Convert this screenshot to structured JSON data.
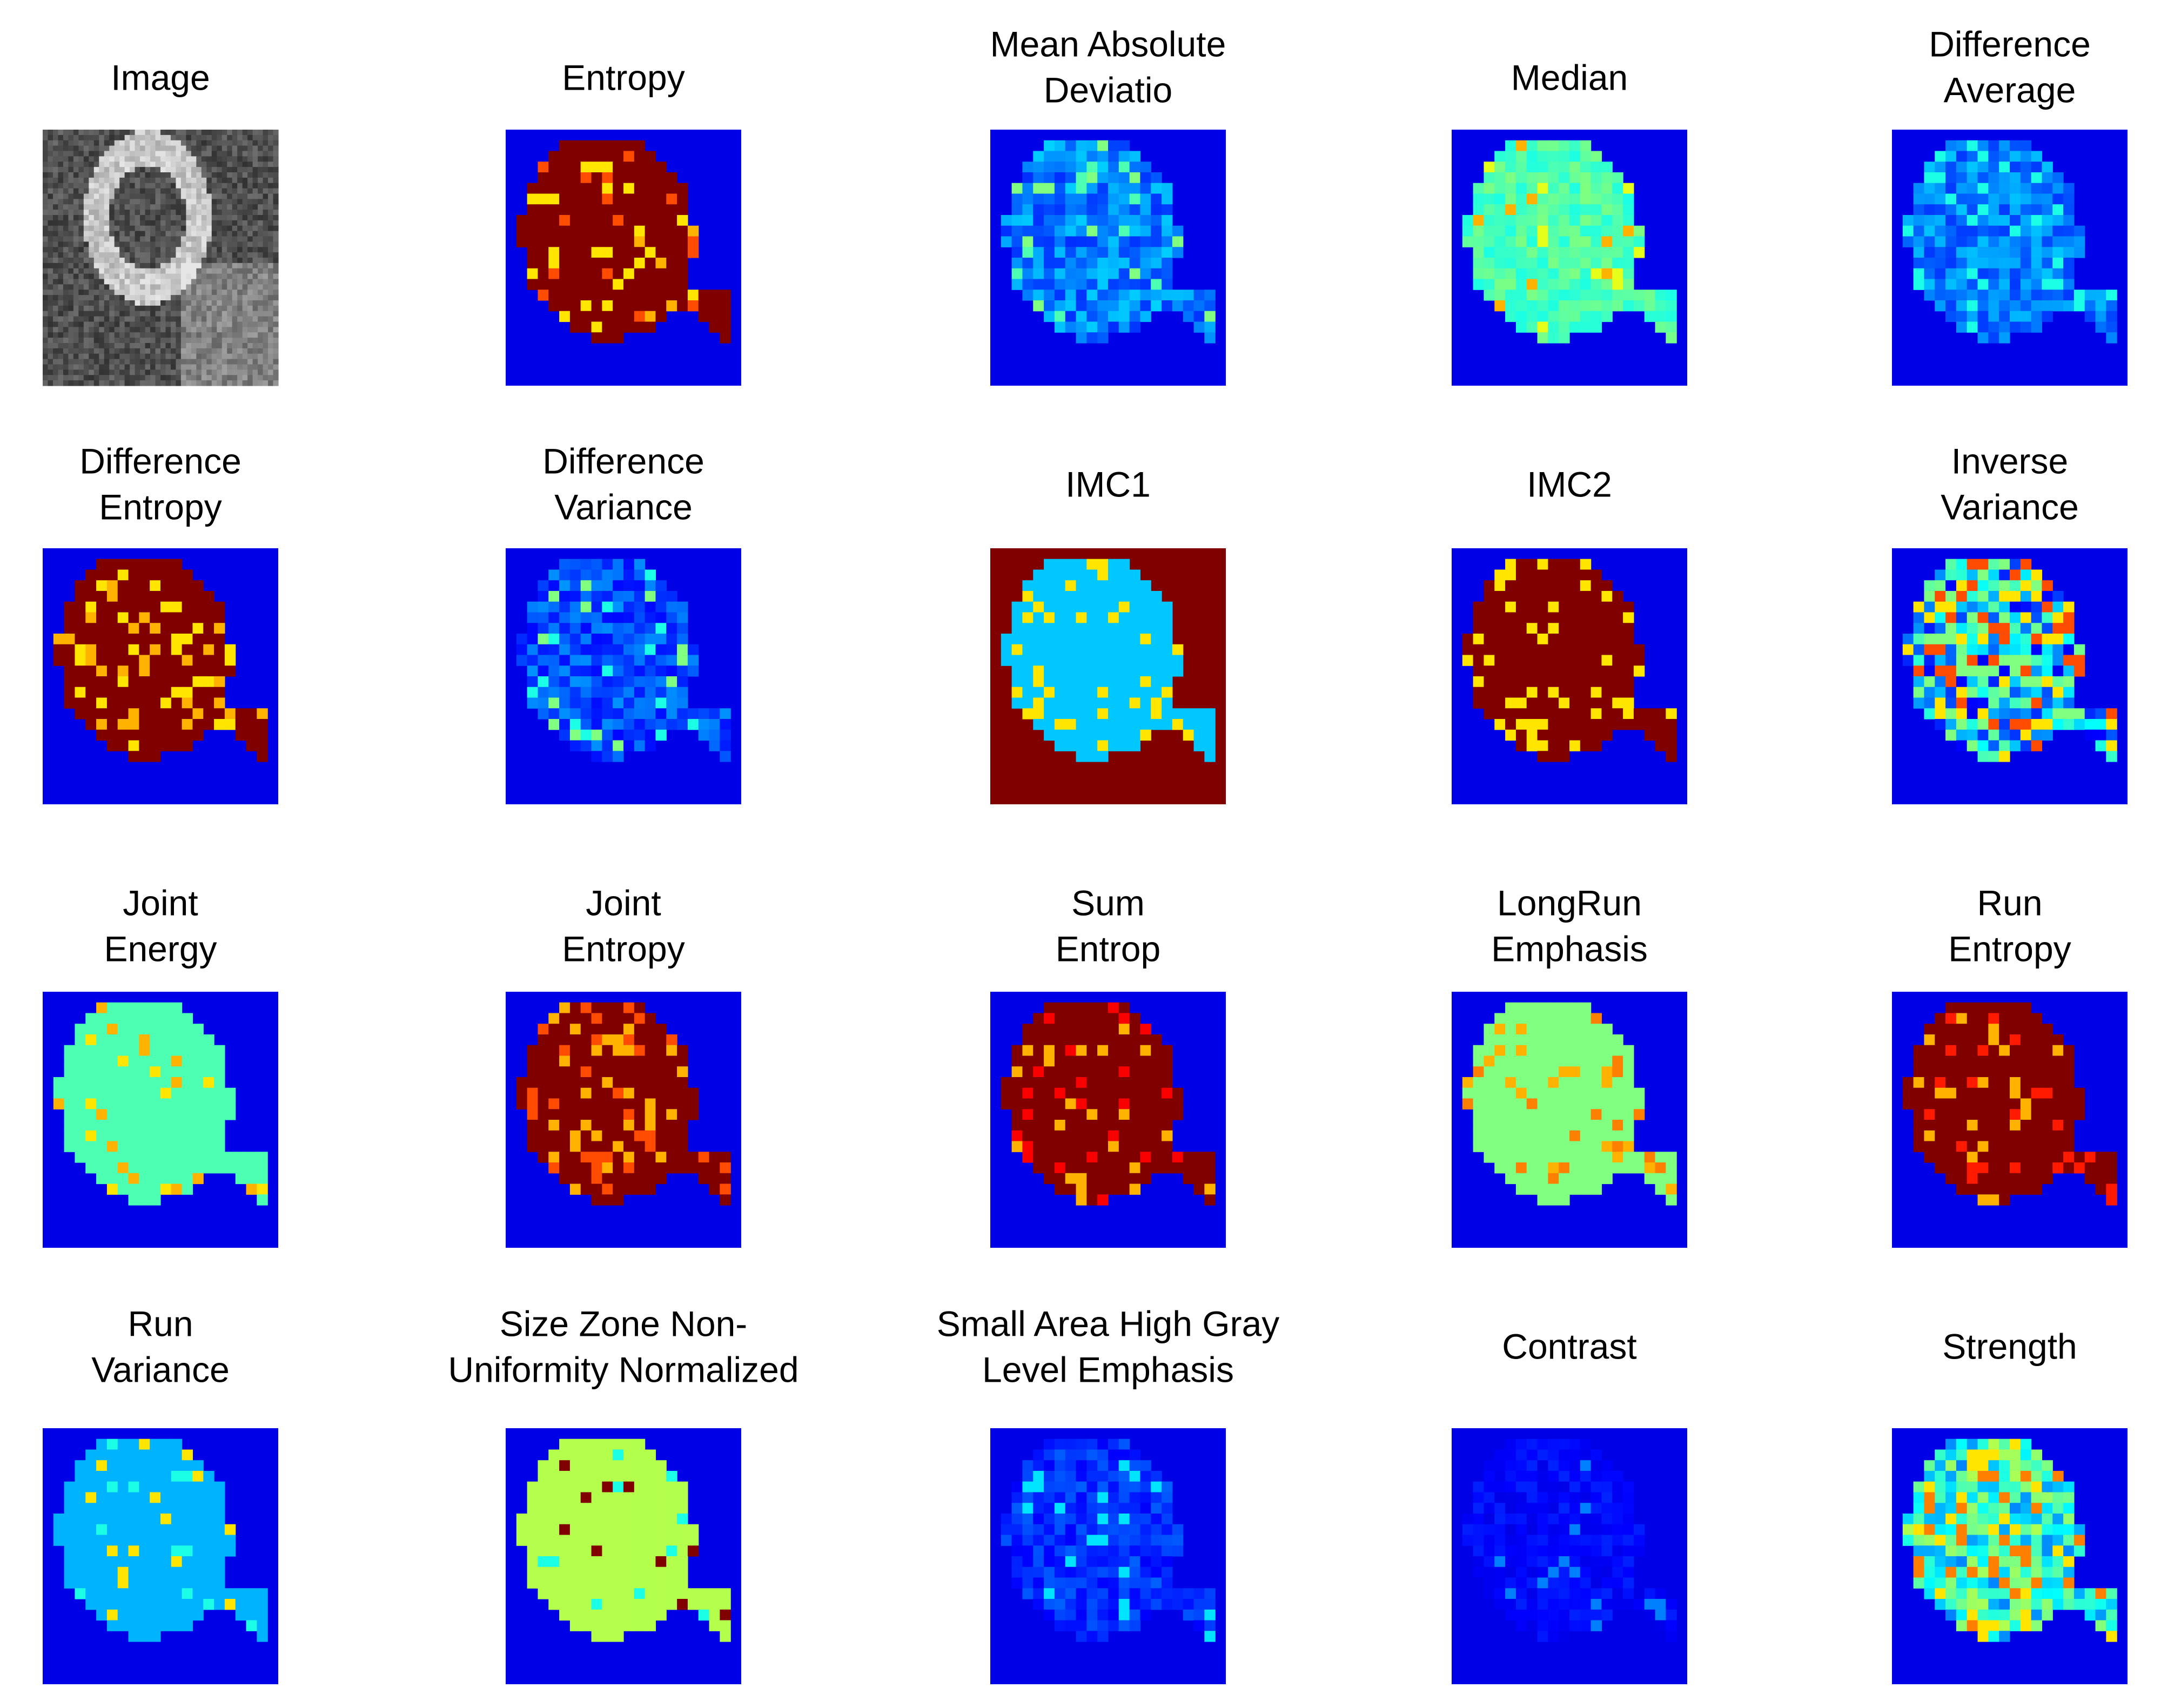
{
  "panels": [
    {
      "title": [
        "Image"
      ]
    },
    {
      "title": [
        "Entropy"
      ]
    },
    {
      "title": [
        "Mean Absolute",
        "Deviatio"
      ]
    },
    {
      "title": [
        "Median"
      ]
    },
    {
      "title": [
        "Difference",
        "Average"
      ]
    },
    {
      "title": [
        "Difference",
        "Entropy"
      ]
    },
    {
      "title": [
        "Difference",
        "Variance"
      ]
    },
    {
      "title": [
        "IMC1"
      ]
    },
    {
      "title": [
        "IMC2"
      ]
    },
    {
      "title": [
        "Inverse",
        "Variance"
      ]
    },
    {
      "title": [
        "Joint",
        "Energy"
      ]
    },
    {
      "title": [
        "Joint",
        "Entropy"
      ]
    },
    {
      "title": [
        "Sum",
        "Entrop"
      ]
    },
    {
      "title": [
        "LongRun",
        "Emphasis"
      ]
    },
    {
      "title": [
        "Run",
        "Entropy"
      ]
    },
    {
      "title": [
        "Run",
        "Variance"
      ]
    },
    {
      "title": [
        "Size Zone Non-",
        "Uniformity Normalized"
      ]
    },
    {
      "title": [
        "Small Area High Gray",
        "Level Emphasis"
      ]
    },
    {
      "title": [
        "Contrast"
      ]
    },
    {
      "title": [
        "Strength"
      ]
    }
  ]
}
